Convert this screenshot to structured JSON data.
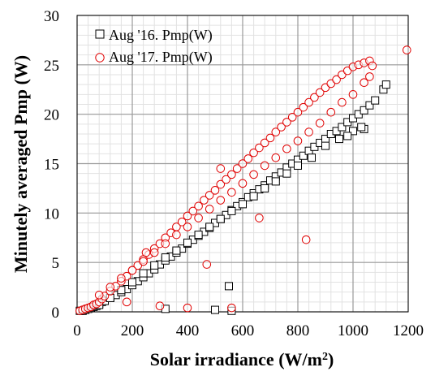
{
  "chart_data": {
    "type": "scatter",
    "xlabel": "Solar irradiance  (W/m²)",
    "ylabel": "Minutely averaged Pmp (W)",
    "xlim": [
      0,
      1200
    ],
    "ylim": [
      0,
      30
    ],
    "xticks": [
      0,
      200,
      400,
      600,
      800,
      1000,
      1200
    ],
    "yticks": [
      0,
      5,
      10,
      15,
      20,
      25,
      30
    ],
    "grid": "major and minor",
    "legend_position": "top-left",
    "series": [
      {
        "name": "Aug '16. Pmp(W)",
        "marker": "square",
        "color": "#000000",
        "x": [
          10,
          20,
          30,
          40,
          50,
          60,
          70,
          80,
          90,
          100,
          120,
          140,
          160,
          180,
          200,
          220,
          240,
          260,
          280,
          300,
          320,
          340,
          360,
          380,
          400,
          420,
          440,
          460,
          480,
          500,
          520,
          540,
          560,
          580,
          600,
          620,
          640,
          660,
          680,
          700,
          720,
          740,
          760,
          780,
          800,
          820,
          840,
          860,
          880,
          900,
          920,
          940,
          960,
          980,
          1000,
          1020,
          1040,
          1060,
          1080,
          1110,
          1120,
          1040,
          1030,
          1000,
          980,
          950,
          900,
          850,
          800,
          760,
          720,
          680,
          640,
          600,
          560,
          520,
          480,
          440,
          400,
          360,
          320,
          280,
          240,
          200,
          160,
          120,
          80,
          550,
          320,
          500,
          560
        ],
        "y": [
          0.1,
          0.1,
          0.2,
          0.3,
          0.4,
          0.5,
          0.6,
          0.8,
          1.0,
          1.1,
          1.4,
          1.7,
          2.0,
          2.3,
          2.7,
          3.1,
          3.5,
          3.9,
          4.3,
          4.8,
          5.2,
          5.6,
          6.0,
          6.4,
          6.9,
          7.3,
          7.7,
          8.1,
          8.5,
          9.0,
          9.4,
          9.8,
          10.3,
          10.7,
          11.1,
          11.6,
          12.0,
          12.4,
          12.8,
          13.3,
          13.7,
          14.1,
          14.6,
          15.0,
          15.4,
          15.8,
          16.3,
          16.7,
          17.1,
          17.5,
          18.0,
          18.3,
          18.7,
          19.2,
          19.6,
          20.0,
          20.4,
          20.9,
          21.4,
          22.5,
          23.0,
          18.5,
          18.7,
          18.3,
          17.8,
          17.5,
          16.8,
          15.6,
          14.8,
          14.0,
          13.2,
          12.5,
          11.7,
          10.9,
          10.2,
          9.4,
          8.6,
          7.8,
          7.0,
          6.2,
          5.5,
          4.7,
          3.9,
          3.0,
          2.2,
          1.4,
          0.7,
          2.6,
          0.3,
          0.2,
          0.1
        ]
      },
      {
        "name": "Aug '17. Pmp(W)",
        "marker": "circle",
        "color": "#e00000",
        "x": [
          10,
          20,
          30,
          40,
          50,
          60,
          70,
          80,
          90,
          100,
          120,
          140,
          160,
          180,
          200,
          220,
          240,
          260,
          280,
          300,
          320,
          340,
          360,
          380,
          400,
          420,
          440,
          460,
          480,
          500,
          520,
          540,
          560,
          580,
          600,
          620,
          640,
          660,
          680,
          700,
          720,
          740,
          760,
          780,
          800,
          820,
          840,
          860,
          880,
          900,
          920,
          940,
          960,
          980,
          1000,
          1020,
          1040,
          1060,
          1070,
          1195,
          1060,
          1040,
          1000,
          960,
          920,
          880,
          840,
          800,
          760,
          720,
          680,
          640,
          600,
          560,
          520,
          480,
          440,
          400,
          360,
          320,
          280,
          240,
          200,
          160,
          120,
          80,
          520,
          830,
          660,
          470,
          250,
          180,
          300,
          400,
          560
        ],
        "y": [
          0.1,
          0.2,
          0.3,
          0.4,
          0.5,
          0.7,
          0.8,
          1.0,
          1.3,
          1.6,
          2.1,
          2.6,
          3.1,
          3.6,
          4.2,
          4.7,
          5.3,
          5.8,
          6.4,
          6.9,
          7.5,
          8.0,
          8.6,
          9.1,
          9.7,
          10.2,
          10.7,
          11.3,
          11.8,
          12.3,
          12.9,
          13.4,
          13.9,
          14.5,
          15.0,
          15.5,
          16.1,
          16.6,
          17.1,
          17.6,
          18.2,
          18.7,
          19.2,
          19.7,
          20.2,
          20.7,
          21.2,
          21.7,
          22.2,
          22.7,
          23.1,
          23.5,
          24.0,
          24.4,
          24.8,
          25.0,
          25.2,
          25.4,
          24.9,
          26.5,
          23.8,
          23.2,
          22.0,
          21.2,
          20.2,
          19.1,
          18.2,
          17.3,
          16.5,
          15.6,
          14.8,
          13.9,
          13.0,
          12.1,
          11.3,
          10.4,
          9.5,
          8.6,
          7.8,
          6.9,
          6.0,
          5.1,
          4.2,
          3.4,
          2.5,
          1.7,
          14.5,
          7.3,
          9.5,
          4.8,
          6.0,
          1.0,
          0.6,
          0.4,
          0.4
        ]
      }
    ]
  }
}
